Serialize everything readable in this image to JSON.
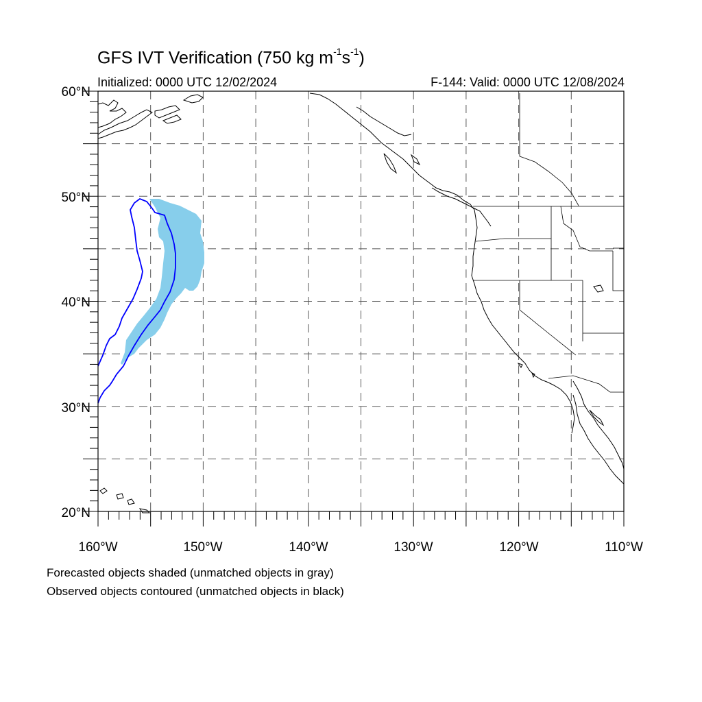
{
  "header": {
    "title_main": "GFS IVT Verification (750 kg m",
    "title_exp1": "-1",
    "title_mid": "s",
    "title_exp2": "-1",
    "title_end": ")",
    "init_label": "Initialized: 0000 UTC 12/02/2024",
    "valid_label": "F-144: Valid: 0000 UTC 12/08/2024"
  },
  "map": {
    "lon_range": [
      -160,
      -110
    ],
    "lat_range": [
      20,
      60
    ],
    "grid_lines": "dashed every 5 degrees",
    "lat_labels": [
      "60°N",
      "50°N",
      "40°N",
      "30°N",
      "20°N"
    ],
    "lon_labels": [
      "160°W",
      "150°W",
      "140°W",
      "130°W",
      "120°W",
      "110°W"
    ]
  },
  "styles": {
    "forecast_fill": "#87ceeb",
    "observed_contour": "#0000ff",
    "coastline": "#000000"
  },
  "legend": {
    "line1": "Forecasted objects shaded (unmatched objects in gray)",
    "line2": "Observed objects contoured (unmatched objects in black)"
  }
}
